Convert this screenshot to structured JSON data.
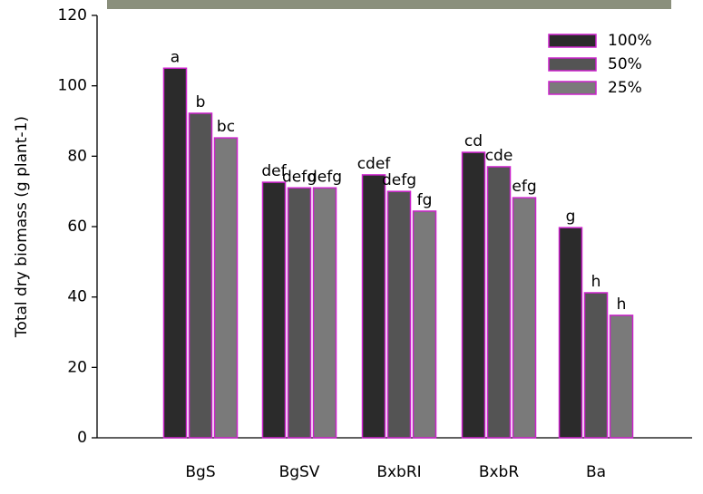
{
  "chart_data": {
    "type": "bar",
    "ylabel": "Total dry biomass (g plant-1)",
    "categories": [
      "BgS",
      "BgSV",
      "BxbRI",
      "BxbR",
      "Ba"
    ],
    "series": [
      {
        "name": "100%",
        "color": "#2b2b2b",
        "values": [
          105,
          72.6,
          74.7,
          81.1,
          59.7
        ],
        "letters": [
          "a",
          "def",
          "cdef",
          "cd",
          "g"
        ]
      },
      {
        "name": "50%",
        "color": "#545454",
        "values": [
          92.2,
          71,
          70,
          77,
          41.2
        ],
        "letters": [
          "b",
          "defg",
          "defg",
          "cde",
          "h"
        ]
      },
      {
        "name": "25%",
        "color": "#7a7a7a",
        "values": [
          85.2,
          71,
          64.4,
          68.2,
          34.8
        ],
        "letters": [
          "bc",
          "defg",
          "fg",
          "efg",
          "h"
        ]
      }
    ],
    "edge_color": "#cc22cc",
    "ylim": [
      0,
      120
    ],
    "yticks": [
      0,
      20,
      40,
      60,
      80,
      100,
      120
    ],
    "legend": "upper right"
  }
}
